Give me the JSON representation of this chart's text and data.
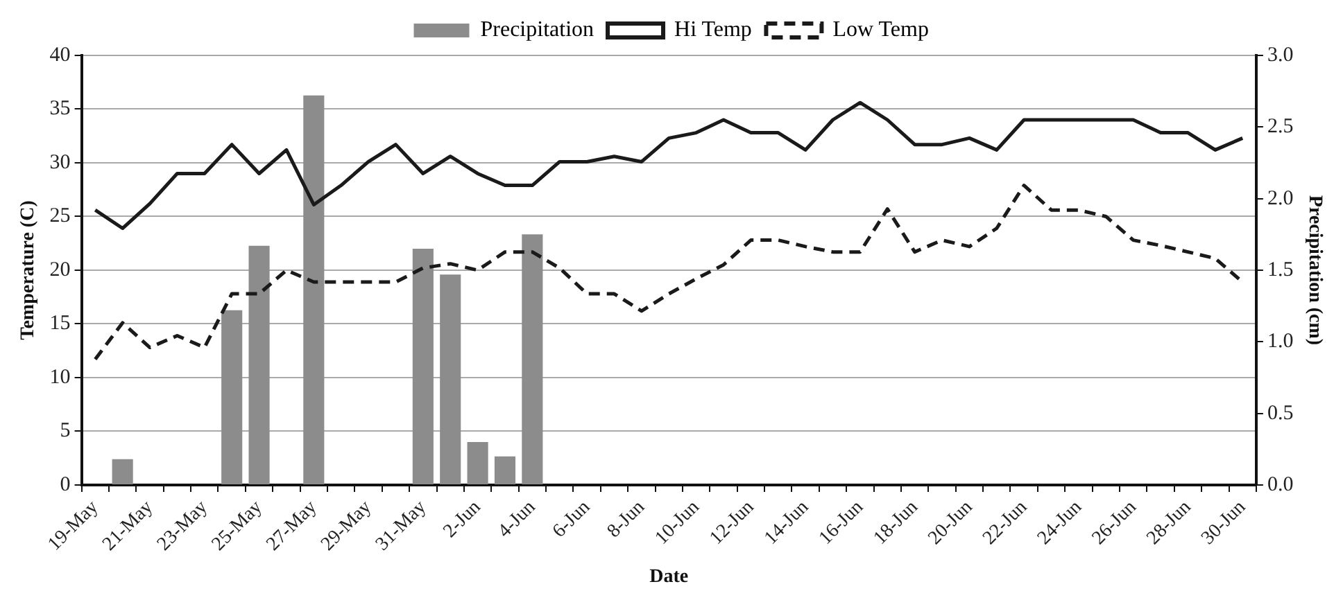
{
  "chart_data": {
    "type": "line",
    "xlabel": "Date",
    "ylabel": "Temperature (C)",
    "y2label": "Precipitation (cm)",
    "categories": [
      "19-May",
      null,
      "21-May",
      null,
      "23-May",
      null,
      "25-May",
      null,
      "27-May",
      null,
      "29-May",
      null,
      "31-May",
      null,
      "2-Jun",
      null,
      "4-Jun",
      null,
      "6-Jun",
      null,
      "8-Jun",
      null,
      "10-Jun",
      null,
      "12-Jun",
      null,
      "14-Jun",
      null,
      "16-Jun",
      null,
      "18-Jun",
      null,
      "20-Jun",
      null,
      "22-Jun",
      null,
      "24-Jun",
      null,
      "26-Jun",
      null,
      "28-Jun",
      null,
      "30-Jun"
    ],
    "series": [
      {
        "name": "Precipitation",
        "type": "bar",
        "axis": "y2",
        "color": "#8c8c8c",
        "values": [
          0,
          0.18,
          0,
          0,
          0,
          1.22,
          1.67,
          0,
          2.72,
          0,
          0,
          0,
          1.65,
          1.47,
          0.3,
          0.2,
          1.75,
          0,
          0,
          0,
          0,
          0,
          0,
          0,
          0,
          0,
          0,
          0,
          0,
          0,
          0,
          0,
          0,
          0,
          0,
          0,
          0,
          0,
          0,
          0,
          0,
          0,
          0
        ]
      },
      {
        "name": "Hi Temp",
        "color": "#1a1a1a",
        "line_style": "solid",
        "values": [
          25.6,
          23.9,
          26.2,
          29,
          29,
          31.7,
          29,
          31.2,
          26.1,
          27.9,
          30.1,
          31.7,
          29,
          30.6,
          29,
          27.9,
          27.9,
          30.1,
          30.1,
          30.6,
          30.1,
          32.3,
          32.8,
          34,
          32.8,
          32.8,
          31.2,
          34,
          35.6,
          34,
          31.7,
          31.7,
          32.3,
          31.2,
          34,
          34,
          34,
          34,
          34,
          32.8,
          32.8,
          31.2,
          32.3
        ]
      },
      {
        "name": "Low Temp",
        "color": "#1a1a1a",
        "line_style": "dashed",
        "values": [
          11.7,
          15.1,
          12.8,
          13.9,
          12.8,
          17.8,
          17.8,
          20,
          18.9,
          18.9,
          18.9,
          18.9,
          20.2,
          20.6,
          20,
          21.7,
          21.7,
          20.2,
          17.8,
          17.8,
          16.2,
          17.8,
          19.2,
          20.5,
          22.8,
          22.8,
          22.2,
          21.7,
          21.7,
          25.7,
          21.7,
          22.8,
          22.2,
          23.9,
          27.9,
          25.6,
          25.6,
          25,
          22.8,
          22.3,
          21.7,
          21.1,
          18.9
        ]
      }
    ],
    "ylim": [
      0,
      40
    ],
    "yticks": [
      0,
      5,
      10,
      15,
      20,
      25,
      30,
      35,
      40
    ],
    "y2lim": [
      0,
      3
    ],
    "y2ticks": [
      {
        "value": 0,
        "label": "0.0"
      },
      {
        "value": 0.5,
        "label": "0.5"
      },
      {
        "value": 1,
        "label": "1.0"
      },
      {
        "value": 1.5,
        "label": "1.5"
      },
      {
        "value": 2,
        "label": "2.0"
      },
      {
        "value": 2.5,
        "label": "2.5"
      },
      {
        "value": 3,
        "label": "3.0"
      }
    ],
    "grid": "y",
    "legend": "top",
    "marker": "none"
  }
}
